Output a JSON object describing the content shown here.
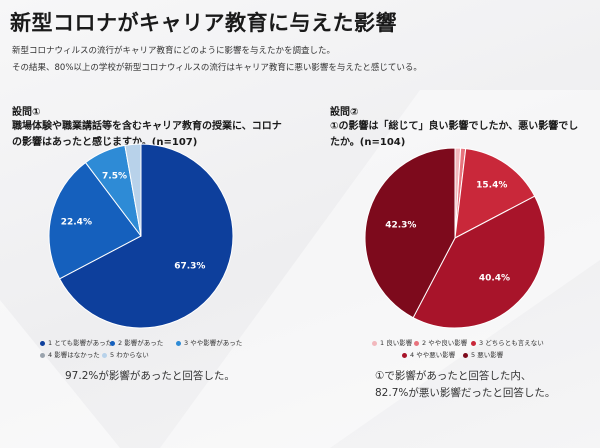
{
  "title": "新型コロナがキャリア教育に与えた影響",
  "description": [
    "新型コロナウィルスの流行がキャリア教育にどのように影響を与えたかを調査した。",
    "その結果、80%以上の学校が新型コロナウィルスの流行はキャリア教育に悪い影響を与えたと感じている。"
  ],
  "chart_data": [
    {
      "type": "pie",
      "title": "設問①",
      "question": "職場体験や職業講話等を含むキャリア教育の授業に、コロナの影響はあったと感じますか。(n=107)",
      "categories": [
        "1 とても影響があった",
        "2 影響があった",
        "3 やや影響があった",
        "4 影響はなかった",
        "5 わからない"
      ],
      "values": [
        67.3,
        22.4,
        7.5,
        0,
        2.8
      ],
      "data_labels": [
        "67.3%",
        "22.4%",
        "7.5%",
        "",
        ""
      ],
      "colors": [
        "#0d3f9c",
        "#1560bd",
        "#2e8bd6",
        "#9aa3ad",
        "#b8d2ea"
      ],
      "legend_position": "bottom",
      "summary": "97.2%が影響があったと回答した。"
    },
    {
      "type": "pie",
      "title": "設問②",
      "question": "①の影響は「総じて」良い影響でしたか、悪い影響でしたか。(n=104)",
      "categories": [
        "1 良い影響",
        "2 やや良い影響",
        "3 どちらとも言えない",
        "4 やや悪い影響",
        "5 悪い影響"
      ],
      "values": [
        1.0,
        0.9,
        15.4,
        40.4,
        42.3
      ],
      "data_labels": [
        "",
        "",
        "15.4%",
        "40.4%",
        "42.3%"
      ],
      "colors": [
        "#f2b8bd",
        "#e8737d",
        "#c9283a",
        "#a8142a",
        "#7d0a1c"
      ],
      "legend_position": "bottom",
      "summary": [
        "①で影響があったと回答した内、",
        "82.7%が悪い影響だったと回答した。"
      ]
    }
  ]
}
